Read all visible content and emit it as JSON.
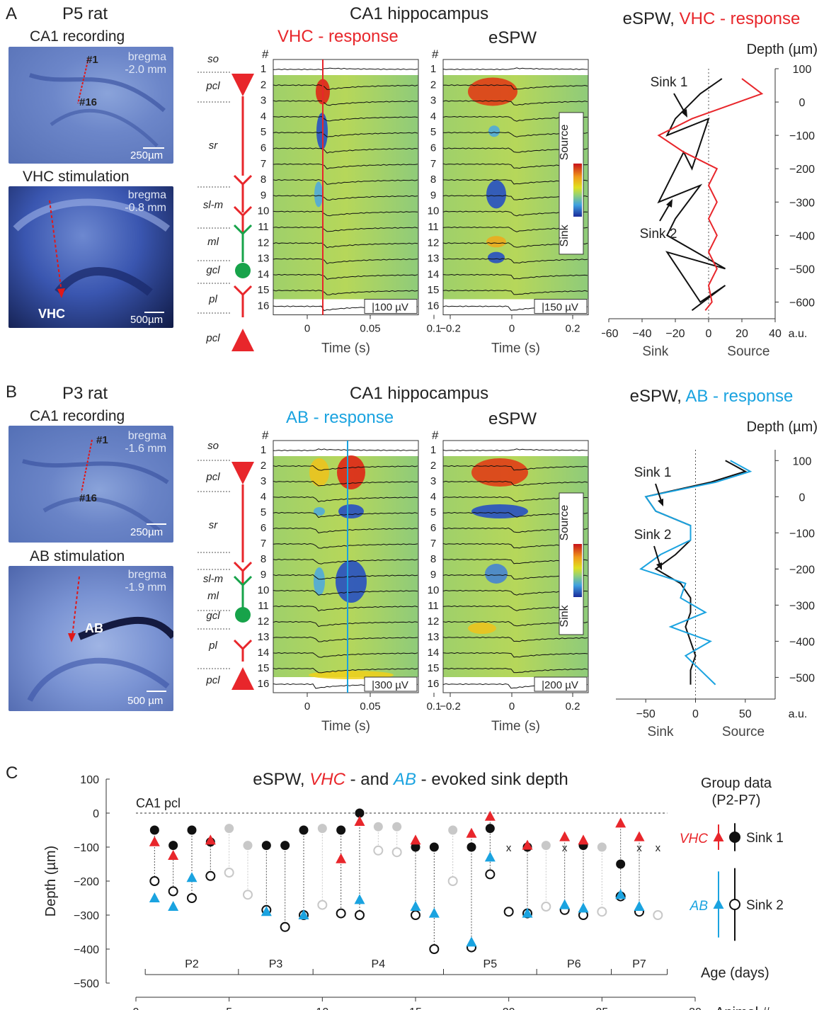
{
  "panelA": {
    "letter": "A",
    "rat": "P5 rat",
    "rec_title": "CA1 recording",
    "rec_bregma1": "bregma",
    "rec_bregma2": "-2.0 mm",
    "rec_ch_first": "#1",
    "rec_ch_last": "#16",
    "rec_scale": "250µm",
    "stim_title": "VHC stimulation",
    "stim_bregma1": "bregma",
    "stim_bregma2": "-0.8 mm",
    "stim_site": "VHC",
    "stim_scale": "500µm",
    "region_title": "CA1 hippocampus",
    "resp_title": "VHC - response",
    "espw_title": "eSPW",
    "layers": [
      "so",
      "pcl",
      "sr",
      "sl-m",
      "ml",
      "gcl",
      "pl",
      "pcl"
    ],
    "resp_scalebar": "100 µV",
    "espw_scalebar": "150 µV",
    "resp_xticks": [
      "0",
      "0.05",
      "0.1"
    ],
    "espw_xticks": [
      "−0.2",
      "0",
      "0.2"
    ],
    "xlabel": "Time (s)",
    "channel_header": "#",
    "colorbar_top": "Source",
    "colorbar_bottom": "Sink"
  },
  "panelB": {
    "letter": "B",
    "rat": "P3 rat",
    "rec_title": "CA1 recording",
    "rec_bregma1": "bregma",
    "rec_bregma2": "-1.6 mm",
    "rec_ch_first": "#1",
    "rec_ch_last": "#16",
    "rec_scale": "250µm",
    "stim_title": "AB stimulation",
    "stim_bregma1": "bregma",
    "stim_bregma2": "-1.9 mm",
    "stim_site": "AB",
    "stim_scale": "500 µm",
    "region_title": "CA1 hippocampus",
    "resp_title": "AB - response",
    "espw_title": "eSPW",
    "layers": [
      "so",
      "pcl",
      "sr",
      "sl-m",
      "ml",
      "gcl",
      "pl",
      "pcl"
    ],
    "resp_scalebar": "300 µV",
    "espw_scalebar": "200 µV",
    "resp_xticks": [
      "0",
      "0.05",
      "0.1"
    ],
    "espw_xticks": [
      "−0.2",
      "0",
      "0.2"
    ],
    "xlabel": "Time (s)",
    "channel_header": "#",
    "colorbar_top": "Source",
    "colorbar_bottom": "Sink"
  },
  "panelC": {
    "letter": "C"
  },
  "colors": {
    "vhc": "#e8262b",
    "ab": "#1aa3e0",
    "black": "#111111",
    "gray": "#c8c8c8"
  },
  "chart_data": [
    {
      "type": "line",
      "title": "eSPW, VHC - response",
      "title_parts": [
        "eSPW, ",
        "VHC - response"
      ],
      "ylabel": "Depth (µm)",
      "xlabel_left": "Sink",
      "xlabel_right": "Source",
      "x_unit": "a.u.",
      "xlim": [
        -60,
        40
      ],
      "ylim": [
        -650,
        100
      ],
      "xticks": [
        -60,
        -40,
        -20,
        0,
        20,
        40
      ],
      "yticks": [
        100,
        0,
        -100,
        -200,
        -300,
        -400,
        -500,
        -600
      ],
      "series": [
        {
          "color": "black",
          "depth": [
            70,
            25,
            -50,
            -100,
            -50,
            -200,
            -150,
            -300,
            -250,
            -350,
            -400,
            -500,
            -450,
            -600,
            -550,
            -625
          ],
          "value": [
            8,
            -5,
            -20,
            -25,
            0,
            -10,
            -15,
            -30,
            -5,
            -20,
            -25,
            10,
            -25,
            -5,
            10,
            -10
          ]
        },
        {
          "color": "red",
          "depth": [
            70,
            25,
            -50,
            -100,
            -150,
            -200,
            -250,
            -300,
            -350,
            -400,
            -450,
            -500,
            -550,
            -600,
            -625
          ],
          "value": [
            20,
            32,
            -10,
            -30,
            -15,
            5,
            0,
            5,
            0,
            5,
            0,
            5,
            0,
            2,
            -2
          ]
        }
      ],
      "annotations": [
        "Sink 1",
        "Sink 2"
      ]
    },
    {
      "type": "line",
      "title": "eSPW, AB - response",
      "title_parts": [
        "eSPW, ",
        "AB - response"
      ],
      "ylabel": "Depth (µm)",
      "xlabel_left": "Sink",
      "xlabel_right": "Source",
      "x_unit": "a.u.",
      "xlim": [
        -80,
        80
      ],
      "ylim": [
        -560,
        130
      ],
      "xticks": [
        -50,
        0,
        50
      ],
      "yticks": [
        100,
        0,
        -100,
        -200,
        -300,
        -400,
        -500
      ],
      "series": [
        {
          "color": "black",
          "depth": [
            100,
            70,
            40,
            0,
            -40,
            -80,
            -120,
            -160,
            -200,
            -240,
            -280,
            -320,
            -360,
            -400,
            -440,
            -480,
            -520
          ],
          "value": [
            30,
            50,
            15,
            -50,
            -40,
            -5,
            -5,
            -20,
            -40,
            -15,
            -5,
            -5,
            -10,
            -5,
            0,
            -5,
            -5
          ]
        },
        {
          "color": "blue",
          "depth": [
            100,
            70,
            40,
            0,
            -40,
            -80,
            -120,
            -160,
            -200,
            -240,
            -280,
            -320,
            -360,
            -400,
            -440,
            -480,
            -520
          ],
          "value": [
            35,
            55,
            20,
            -50,
            -40,
            -5,
            -5,
            -35,
            -55,
            -10,
            -15,
            10,
            -25,
            15,
            -10,
            5,
            20
          ]
        }
      ],
      "annotations": [
        "Sink 1",
        "Sink 2"
      ]
    },
    {
      "type": "scatter",
      "title": "eSPW, VHC - and AB - evoked sink depth",
      "title_parts": [
        "eSPW, ",
        "VHC",
        " - and ",
        "AB",
        " - evoked sink depth"
      ],
      "ylabel": "Depth (µm)",
      "xlabel": "Animal #",
      "xlim": [
        0,
        30
      ],
      "ylim": [
        -500,
        100
      ],
      "xticks": [
        0,
        5,
        10,
        15,
        20,
        25,
        30
      ],
      "yticks": [
        100,
        0,
        -100,
        -200,
        -300,
        -400,
        -500
      ],
      "reference_label": "CA1 pcl",
      "age_label": "Age (days)",
      "age_groups": [
        {
          "label": "P2",
          "from": 0.5,
          "to": 5.5
        },
        {
          "label": "P3",
          "from": 5.5,
          "to": 9.5
        },
        {
          "label": "P4",
          "from": 9.5,
          "to": 16.5
        },
        {
          "label": "P5",
          "from": 16.5,
          "to": 21.5
        },
        {
          "label": "P6",
          "from": 21.5,
          "to": 25.5
        },
        {
          "label": "P7",
          "from": 25.5,
          "to": 28.5
        }
      ],
      "legend_title": [
        "Group data",
        "(P2-P7)"
      ],
      "legend": [
        {
          "prefix": "VHC",
          "label": "Sink 1",
          "mean": -100,
          "err": 25
        },
        {
          "prefix": "AB",
          "label": "Sink 2",
          "mean": -275,
          "err": 65
        }
      ],
      "sink1": [
        {
          "x": 1,
          "y": -50
        },
        {
          "x": 2,
          "y": -95
        },
        {
          "x": 3,
          "y": -50
        },
        {
          "x": 4,
          "y": -85
        },
        {
          "x": 5,
          "y": -45,
          "gray": true
        },
        {
          "x": 6,
          "y": -95,
          "gray": true
        },
        {
          "x": 7,
          "y": -95
        },
        {
          "x": 8,
          "y": -95
        },
        {
          "x": 9,
          "y": -50
        },
        {
          "x": 10,
          "y": -45,
          "gray": true
        },
        {
          "x": 11,
          "y": -50
        },
        {
          "x": 12,
          "y": 0
        },
        {
          "x": 13,
          "y": -40,
          "gray": true
        },
        {
          "x": 14,
          "y": -40,
          "gray": true
        },
        {
          "x": 15,
          "y": -100
        },
        {
          "x": 16,
          "y": -100
        },
        {
          "x": 17,
          "y": -50,
          "gray": true
        },
        {
          "x": 18,
          "y": -100
        },
        {
          "x": 19,
          "y": -45
        },
        {
          "x": 21,
          "y": -100
        },
        {
          "x": 22,
          "y": -95,
          "gray": true
        },
        {
          "x": 24,
          "y": -95
        },
        {
          "x": 25,
          "y": -100,
          "gray": true
        },
        {
          "x": 26,
          "y": -150
        }
      ],
      "sink2": [
        {
          "x": 1,
          "y": -200
        },
        {
          "x": 2,
          "y": -230
        },
        {
          "x": 3,
          "y": -250
        },
        {
          "x": 4,
          "y": -185
        },
        {
          "x": 5,
          "y": -175,
          "gray": true
        },
        {
          "x": 6,
          "y": -240,
          "gray": true
        },
        {
          "x": 7,
          "y": -285
        },
        {
          "x": 8,
          "y": -335
        },
        {
          "x": 9,
          "y": -300
        },
        {
          "x": 10,
          "y": -270,
          "gray": true
        },
        {
          "x": 11,
          "y": -295
        },
        {
          "x": 12,
          "y": -300
        },
        {
          "x": 13,
          "y": -110,
          "gray": true
        },
        {
          "x": 14,
          "y": -115,
          "gray": true
        },
        {
          "x": 15,
          "y": -300
        },
        {
          "x": 16,
          "y": -400
        },
        {
          "x": 17,
          "y": -200,
          "gray": true
        },
        {
          "x": 18,
          "y": -395
        },
        {
          "x": 19,
          "y": -180
        },
        {
          "x": 20,
          "y": -290
        },
        {
          "x": 21,
          "y": -295
        },
        {
          "x": 22,
          "y": -275,
          "gray": true
        },
        {
          "x": 23,
          "y": -285
        },
        {
          "x": 24,
          "y": -300
        },
        {
          "x": 25,
          "y": -290,
          "gray": true
        },
        {
          "x": 26,
          "y": -245
        },
        {
          "x": 27,
          "y": -290
        },
        {
          "x": 28,
          "y": -300,
          "gray": true
        }
      ],
      "vhc": [
        {
          "x": 1,
          "y": -85
        },
        {
          "x": 2,
          "y": -125
        },
        {
          "x": 4,
          "y": -80
        },
        {
          "x": 11,
          "y": -135
        },
        {
          "x": 12,
          "y": -25
        },
        {
          "x": 15,
          "y": -80
        },
        {
          "x": 18,
          "y": -60
        },
        {
          "x": 19,
          "y": -10
        },
        {
          "x": 21,
          "y": -95
        },
        {
          "x": 23,
          "y": -70
        },
        {
          "x": 24,
          "y": -80
        },
        {
          "x": 26,
          "y": -30
        },
        {
          "x": 27,
          "y": -70
        }
      ],
      "ab": [
        {
          "x": 1,
          "y": -250
        },
        {
          "x": 2,
          "y": -275
        },
        {
          "x": 3,
          "y": -190
        },
        {
          "x": 7,
          "y": -290
        },
        {
          "x": 9,
          "y": -300
        },
        {
          "x": 12,
          "y": -255
        },
        {
          "x": 15,
          "y": -275
        },
        {
          "x": 16,
          "y": -295
        },
        {
          "x": 18,
          "y": -380
        },
        {
          "x": 19,
          "y": -130
        },
        {
          "x": 21,
          "y": -295
        },
        {
          "x": 23,
          "y": -270
        },
        {
          "x": 24,
          "y": -280
        },
        {
          "x": 26,
          "y": -240
        },
        {
          "x": 27,
          "y": -275
        }
      ],
      "missing": [
        {
          "x": 20,
          "y": -100
        },
        {
          "x": 23,
          "y": -100
        },
        {
          "x": 27,
          "y": -100
        },
        {
          "x": 28,
          "y": -100
        }
      ]
    }
  ]
}
